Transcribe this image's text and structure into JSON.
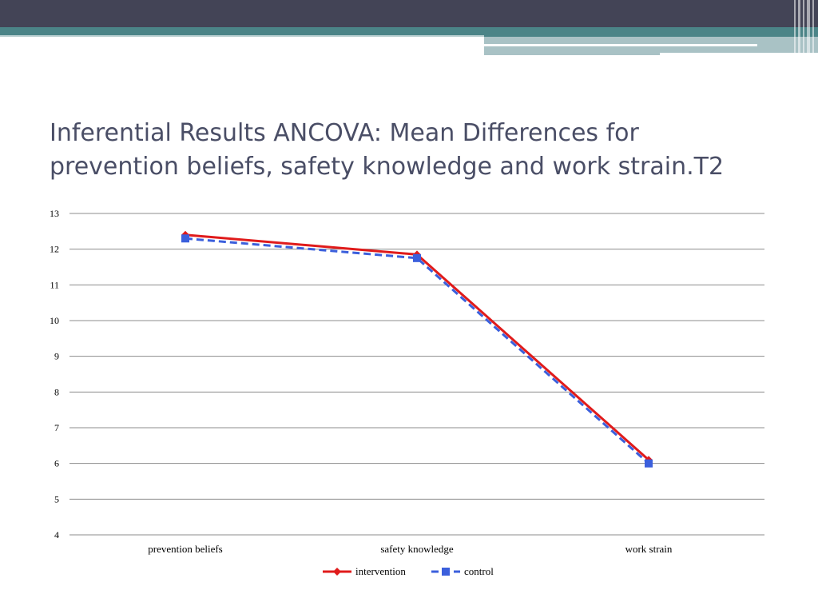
{
  "slide": {
    "title_line1": "Inferential Results ANCOVA: Mean Differences for",
    "title_line2": "prevention beliefs, safety knowledge and work strain.T2"
  },
  "theme": {
    "header": "#434456",
    "teal": "#4b8487",
    "light": "#a9c2c5",
    "title_color": "#4a4e66"
  },
  "chart_data": {
    "type": "line",
    "title": "",
    "xlabel": "",
    "ylabel": "",
    "categories": [
      "prevention beliefs",
      "safety knowledge",
      "work strain"
    ],
    "ylim": [
      4,
      13
    ],
    "yticks": [
      4,
      5,
      6,
      7,
      8,
      9,
      10,
      11,
      12,
      13
    ],
    "grid": true,
    "legend_position": "bottom",
    "series": [
      {
        "name": "intervention",
        "values": [
          12.4,
          11.85,
          6.1
        ],
        "color": "#e01b1b",
        "dash": "solid",
        "marker": "diamond"
      },
      {
        "name": "control",
        "values": [
          12.3,
          11.75,
          6.0
        ],
        "color": "#3b5fdc",
        "dash": "dashed",
        "marker": "square"
      }
    ]
  }
}
